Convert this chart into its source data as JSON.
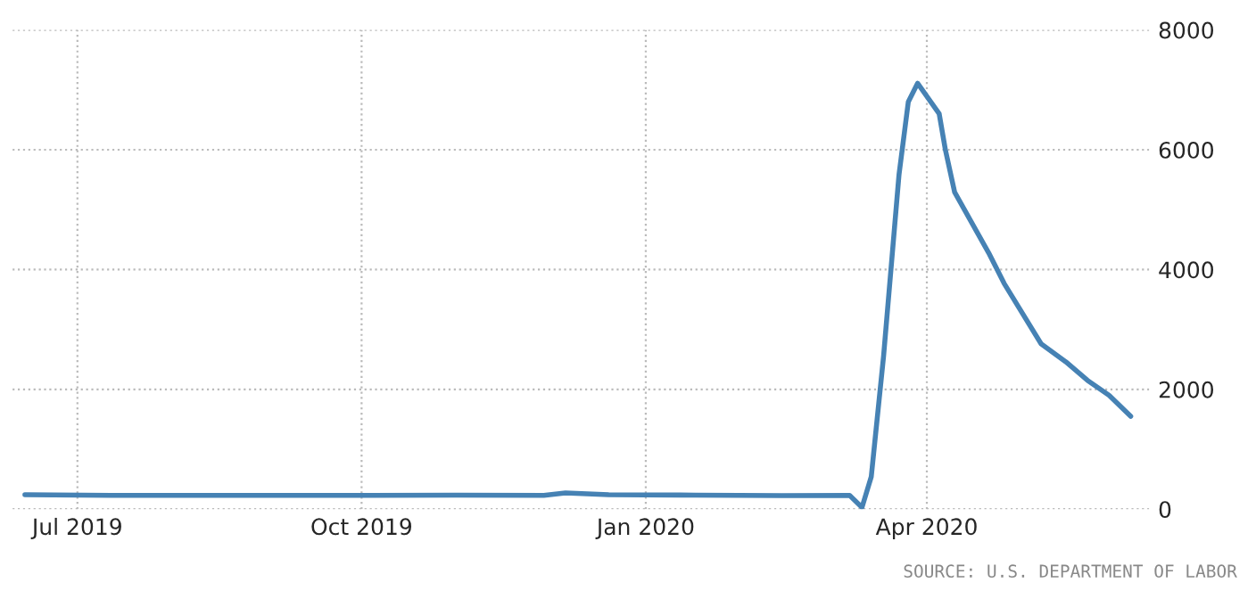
{
  "chart_data": {
    "type": "line",
    "annotations": [
      "SOURCE: U.S. DEPARTMENT OF LABOR"
    ],
    "x": [
      "2019-06-14",
      "2019-07-12",
      "2019-08-09",
      "2019-09-06",
      "2019-10-04",
      "2019-11-01",
      "2019-11-29",
      "2019-12-06",
      "2019-12-20",
      "2020-01-17",
      "2020-02-14",
      "2020-03-07",
      "2020-03-11",
      "2020-03-14",
      "2020-03-18",
      "2020-03-23",
      "2020-03-26",
      "2020-03-29",
      "2020-04-05",
      "2020-04-07",
      "2020-04-10",
      "2020-04-21",
      "2020-04-26",
      "2020-05-08",
      "2020-05-16",
      "2020-05-23",
      "2020-05-30",
      "2020-06-06"
    ],
    "series": [
      {
        "color": "#4682b4",
        "values": [
          240,
          230,
          230,
          230,
          230,
          235,
          230,
          270,
          240,
          235,
          225,
          230,
          30,
          540,
          2560,
          5590,
          6800,
          7110,
          6600,
          6000,
          5290,
          4280,
          3770,
          2760,
          2460,
          2150,
          1900,
          1550
        ]
      }
    ],
    "xlim": [
      "2019-06-10",
      "2020-06-12"
    ],
    "xticks": [
      {
        "value": "2019-07-01",
        "label": "Jul 2019"
      },
      {
        "value": "2019-10-01",
        "label": "Oct 2019"
      },
      {
        "value": "2020-01-01",
        "label": "Jan 2020"
      },
      {
        "value": "2020-04-01",
        "label": "Apr 2020"
      }
    ],
    "ylim": [
      0,
      8000
    ],
    "yticks": [
      0,
      2000,
      4000,
      6000,
      8000
    ],
    "grid": true,
    "line_style": "solid",
    "marker": "none"
  }
}
